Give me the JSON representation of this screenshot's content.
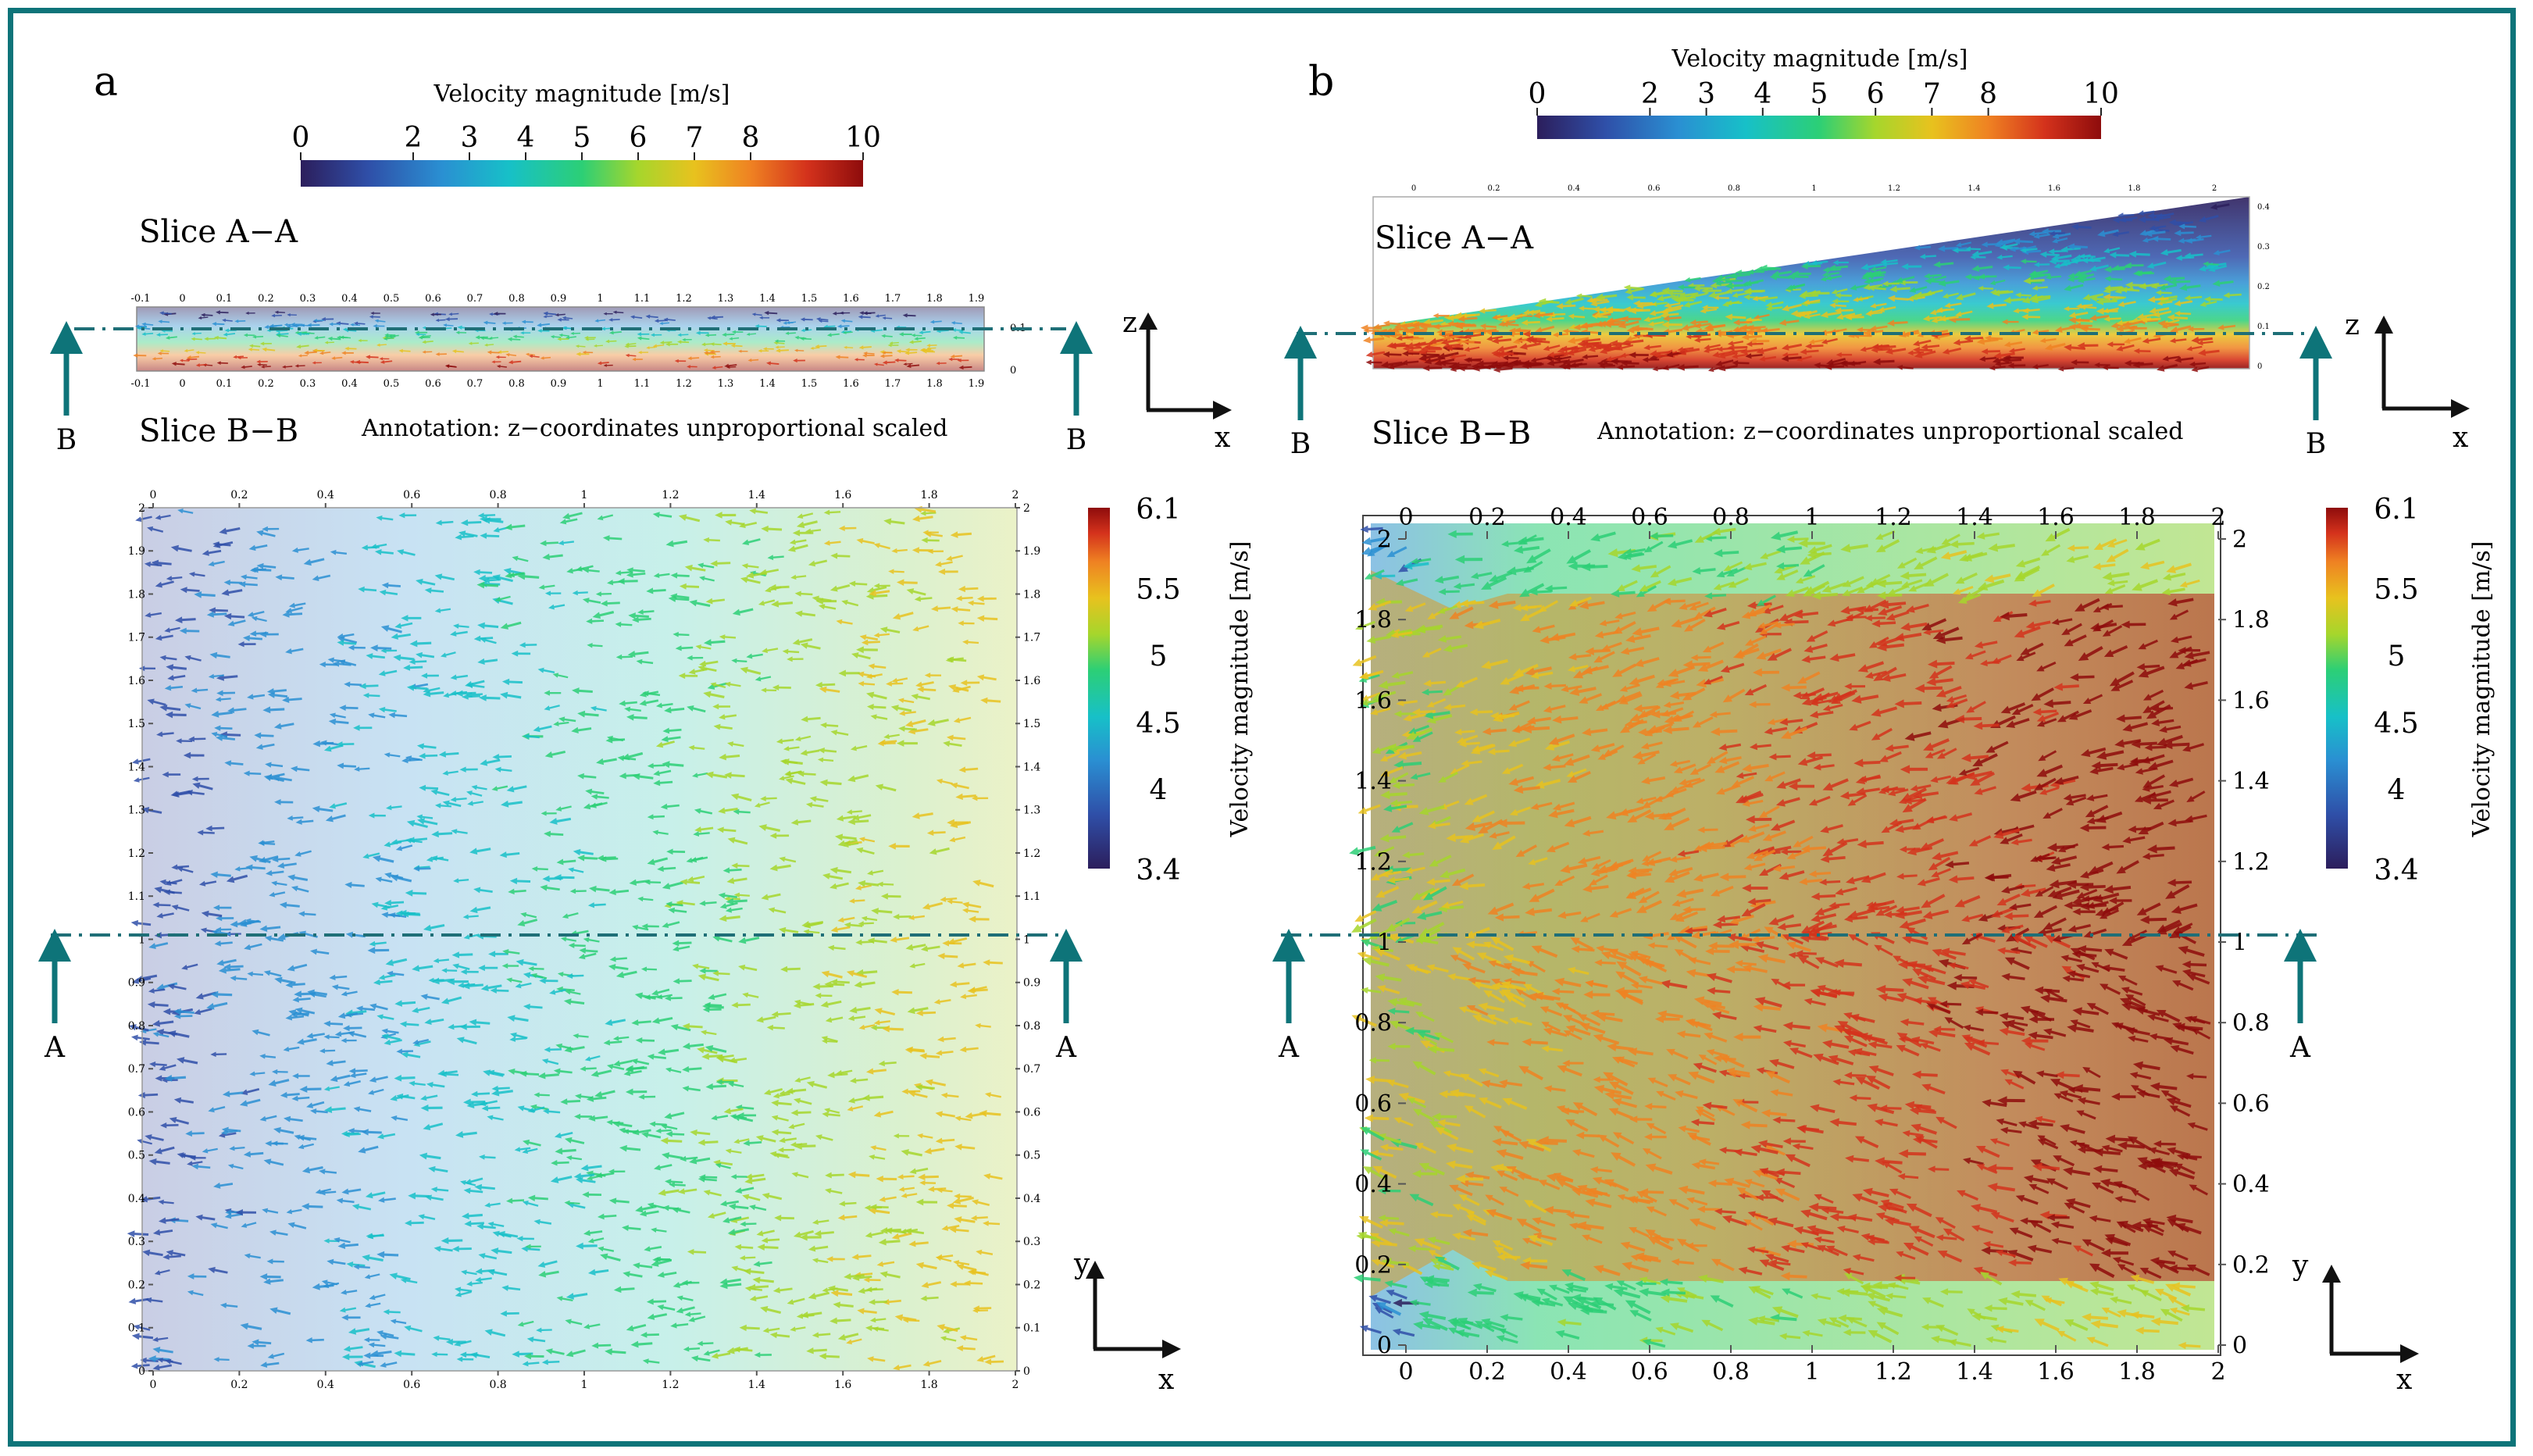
{
  "colors": {
    "frame": "#0e7479",
    "section_line": "#1f6f77",
    "arrow_dark": "#1b1b3a",
    "colormap": [
      "#2c1e5c",
      "#2f4fa8",
      "#2a8fd2",
      "#17c0c8",
      "#2ccf76",
      "#a6d62c",
      "#e8c21e",
      "#ef8222",
      "#d4321c",
      "#8e0c0c"
    ],
    "b_field_low": "#2fb56a",
    "b_field_high": "#c62814"
  },
  "panels": [
    {
      "letter": "a",
      "top_colorbar": {
        "title": "Velocity magnitude [m/s]",
        "ticks": [
          "0",
          "2",
          "3",
          "4",
          "5",
          "6",
          "7",
          "8",
          "10"
        ]
      },
      "slice_aa_label": "Slice A−A",
      "slice_bb_label": "Slice B−B",
      "annotation": "Annotation: z−coordinates unproportional scaled",
      "section_top_ticks": [
        "-0.1",
        "0",
        "0.1",
        "0.2",
        "0.3",
        "0.4",
        "0.5",
        "0.6",
        "0.7",
        "0.8",
        "0.9",
        "1",
        "1.1",
        "1.2",
        "1.3",
        "1.4",
        "1.5",
        "1.6",
        "1.7",
        "1.8",
        "1.9"
      ],
      "section_right_ticks": [
        "0.1",
        "0"
      ],
      "side_colorbar": {
        "title": "Velocity magnitude [m/s]",
        "ticks": [
          "6.1",
          "5.5",
          "5",
          "4.5",
          "4",
          "3.4"
        ]
      },
      "main_x_ticks": [
        "0",
        "0.2",
        "0.4",
        "0.6",
        "0.8",
        "1",
        "1.2",
        "1.4",
        "1.6",
        "1.8",
        "2"
      ],
      "main_y_ticks": [
        "0",
        "0.1",
        "0.2",
        "0.3",
        "0.4",
        "0.5",
        "0.6",
        "0.7",
        "0.8",
        "0.9",
        "1",
        "1.1",
        "1.2",
        "1.3",
        "1.4",
        "1.5",
        "1.6",
        "1.7",
        "1.8",
        "1.9",
        "2"
      ],
      "axes_xz": {
        "z": "z",
        "x": "x"
      },
      "axes_xy": {
        "y": "y",
        "x": "x"
      },
      "marker_b": "B",
      "marker_a": "A"
    },
    {
      "letter": "b",
      "top_colorbar": {
        "title": "Velocity magnitude [m/s]",
        "ticks": [
          "0",
          "2",
          "3",
          "4",
          "5",
          "6",
          "7",
          "8",
          "10"
        ]
      },
      "slice_aa_label": "Slice A−A",
      "slice_bb_label": "Slice B−B",
      "annotation": "Annotation: z−coordinates unproportional scaled",
      "section_top_ticks": [
        "0",
        "0.2",
        "0.4",
        "0.6",
        "0.8",
        "1",
        "1.2",
        "1.4",
        "1.6",
        "1.8",
        "2"
      ],
      "section_right_ticks": [
        "0.4",
        "0.3",
        "0.2",
        "0.1",
        "0"
      ],
      "side_colorbar": {
        "title": "Velocity magnitude [m/s]",
        "ticks": [
          "6.1",
          "5.5",
          "5",
          "4.5",
          "4",
          "3.4"
        ]
      },
      "main_x_ticks": [
        "0",
        "0.2",
        "0.4",
        "0.6",
        "0.8",
        "1",
        "1.2",
        "1.4",
        "1.6",
        "1.8",
        "2"
      ],
      "main_y_ticks": [
        "0",
        "0.2",
        "0.4",
        "0.6",
        "0.8",
        "1",
        "1.2",
        "1.4",
        "1.6",
        "1.8",
        "2"
      ],
      "axes_xz": {
        "z": "z",
        "x": "x"
      },
      "axes_xy": {
        "y": "y",
        "x": "x"
      },
      "marker_b": "B",
      "marker_a": "A"
    }
  ]
}
